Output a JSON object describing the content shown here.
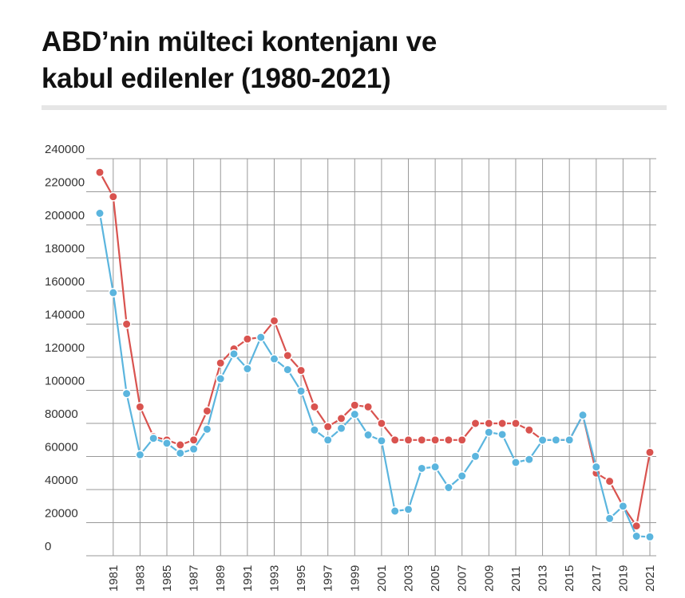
{
  "title": {
    "line1": "ABD’nin mülteci kontenjanı ve",
    "line2": "kabul edilenler (1980-2021)"
  },
  "colors": {
    "quota": "#d9534f",
    "admitted": "#5bb5de",
    "grid": "#999999",
    "rule": "#e6e6e6"
  },
  "chart_data": {
    "type": "line",
    "title": "ABD’nin mülteci kontenjanı ve kabul edilenler (1980-2021)",
    "xlabel": "",
    "ylabel": "",
    "ylim": [
      0,
      240000
    ],
    "yticks": [
      "240000",
      "220000",
      "200000",
      "180000",
      "160000",
      "140000",
      "120000",
      "100000",
      "80000",
      "60000",
      "40000",
      "20000",
      "0"
    ],
    "xticks": [
      "1981",
      "1983",
      "1985",
      "1987",
      "1989",
      "1991",
      "1993",
      "1995",
      "1997",
      "1999",
      "2001",
      "2003",
      "2005",
      "2007",
      "2009",
      "2011",
      "2013",
      "2015",
      "2017",
      "2019",
      "2021"
    ],
    "grid": true,
    "legend": "none",
    "x": [
      1980,
      1981,
      1982,
      1983,
      1984,
      1985,
      1986,
      1987,
      1988,
      1989,
      1990,
      1991,
      1992,
      1993,
      1994,
      1995,
      1996,
      1997,
      1998,
      1999,
      2000,
      2001,
      2002,
      2003,
      2004,
      2005,
      2006,
      2007,
      2008,
      2009,
      2010,
      2011,
      2012,
      2013,
      2014,
      2015,
      2016,
      2017,
      2018,
      2019,
      2020,
      2021
    ],
    "series": [
      {
        "color": "#d9534f",
        "values": [
          231700,
          217000,
          140000,
          90000,
          72000,
          70000,
          67000,
          70000,
          87500,
          116500,
          125000,
          131000,
          132000,
          142000,
          121000,
          112000,
          90000,
          78000,
          83000,
          91000,
          90000,
          80000,
          70000,
          70000,
          70000,
          70000,
          70000,
          70000,
          80000,
          80000,
          80000,
          80000,
          76000,
          70000,
          70000,
          70000,
          85000,
          50000,
          45000,
          30000,
          18000,
          62500
        ]
      },
      {
        "color": "#5bb5de",
        "values": [
          207000,
          159000,
          98000,
          61000,
          71000,
          68000,
          62000,
          64500,
          76500,
          107000,
          122000,
          113000,
          132000,
          119000,
          112500,
          99500,
          76000,
          70000,
          77000,
          85500,
          73000,
          69500,
          27000,
          28000,
          52800,
          53700,
          41200,
          48200,
          60100,
          74600,
          73300,
          56400,
          58200,
          69900,
          70000,
          70000,
          85000,
          53700,
          22500,
          30000,
          11800,
          11400
        ]
      }
    ]
  }
}
